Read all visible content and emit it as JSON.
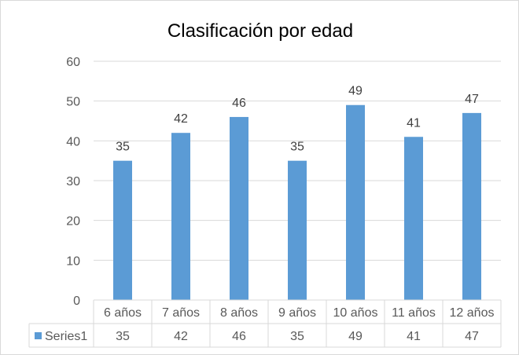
{
  "chart_data": {
    "type": "bar",
    "title": "Clasificación por edad",
    "categories": [
      "6 años",
      "7 años",
      "8 años",
      "9 años",
      "10 años",
      "11 años",
      "12 años"
    ],
    "series": [
      {
        "name": "Series1",
        "values": [
          35,
          42,
          46,
          35,
          49,
          41,
          47
        ],
        "color": "#5b9bd5"
      }
    ],
    "ylim": [
      0,
      60
    ],
    "yticks": [
      0,
      10,
      20,
      30,
      40,
      50,
      60
    ],
    "grid": true,
    "data_labels": true,
    "legend": "data-table",
    "colors": {
      "bar": "#5b9bd5",
      "grid": "#d9d9d9",
      "text": "#595959",
      "title": "#000000"
    }
  }
}
